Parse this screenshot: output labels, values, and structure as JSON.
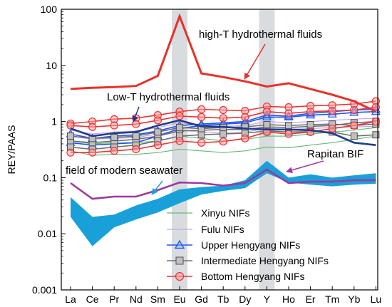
{
  "chart_data": {
    "type": "line",
    "yscale": "log",
    "ylim": [
      0.001,
      100
    ],
    "ylabel": "REY/PAAS",
    "xlabel": "",
    "categories": [
      "La",
      "Ce",
      "Pr",
      "Nd",
      "Sm",
      "Eu",
      "Gd",
      "Tb",
      "Dy",
      "Y",
      "Ho",
      "Er",
      "Tm",
      "Yb",
      "Lu"
    ],
    "yticks": [
      "0.001",
      "0.01",
      "0.1",
      "1",
      "10",
      "100"
    ],
    "highlight_categories": [
      "Eu",
      "Y"
    ],
    "colors": {
      "highT": "#e8312a",
      "lowT": "#1f3d8c",
      "seawater": "#1aa0d8",
      "rapitan": "#9b3aa0",
      "xinyu": "#66bb77",
      "fulu": "#c9a2e6",
      "upper": "#2255ee",
      "intermediate": "#707070",
      "bottom": "#ee3333",
      "highlight": "#d9dcdf"
    },
    "highT_fluids": [
      3.8,
      4.0,
      4.1,
      4.3,
      6.5,
      75,
      7.2,
      6.2,
      5.2,
      4.2,
      4.8,
      3.8,
      3.0,
      2.3,
      1.5
    ],
    "lowT_fluids": [
      0.75,
      0.55,
      0.62,
      0.65,
      0.85,
      1.05,
      0.82,
      0.8,
      0.75,
      0.72,
      0.72,
      0.7,
      0.62,
      0.42,
      0.38
    ],
    "modern_seawater_upper": [
      0.045,
      0.02,
      0.022,
      0.032,
      0.042,
      0.062,
      0.068,
      0.072,
      0.09,
      0.2,
      0.1,
      0.115,
      0.1,
      0.11,
      0.12
    ],
    "modern_seawater_lower": [
      0.02,
      0.006,
      0.013,
      0.018,
      0.024,
      0.035,
      0.05,
      0.058,
      0.065,
      0.12,
      0.082,
      0.075,
      0.07,
      0.075,
      0.078
    ],
    "rapitan_bif": [
      0.08,
      0.042,
      0.046,
      0.046,
      0.06,
      0.082,
      0.08,
      0.072,
      0.08,
      0.14,
      0.08,
      0.085,
      0.085,
      0.09,
      0.09
    ],
    "series": [
      {
        "name": "Xinyu NIFs",
        "marker": "none",
        "lines": [
          [
            0.3,
            0.25,
            0.26,
            0.26,
            0.28,
            0.32,
            0.3,
            0.28,
            0.3,
            0.35,
            0.34,
            0.38,
            0.42,
            0.48,
            0.55
          ],
          [
            0.45,
            0.4,
            0.42,
            0.42,
            0.45,
            0.55,
            0.5,
            0.45,
            0.48,
            0.55,
            0.55,
            0.6,
            0.65,
            0.7,
            0.78
          ]
        ]
      },
      {
        "name": "Fulu NIFs",
        "marker": "none",
        "lines": [
          [
            0.55,
            0.48,
            0.5,
            0.52,
            0.6,
            0.7,
            0.65,
            0.62,
            0.65,
            0.75,
            0.72,
            0.75,
            0.78,
            0.8,
            0.82
          ],
          [
            0.7,
            0.6,
            0.65,
            0.68,
            0.78,
            0.95,
            0.85,
            0.82,
            0.85,
            1.0,
            0.95,
            1.0,
            1.05,
            1.1,
            1.15
          ]
        ]
      },
      {
        "name": "Upper Hengyang NIFs",
        "marker": "triangle",
        "lines": [
          [
            0.42,
            0.38,
            0.4,
            0.42,
            0.55,
            0.75,
            0.85,
            0.9,
            0.95,
            1.2,
            1.2,
            1.3,
            1.35,
            1.45,
            1.5
          ],
          [
            0.6,
            0.5,
            0.55,
            0.58,
            0.68,
            0.85,
            0.9,
            0.95,
            1.0,
            1.3,
            1.25,
            1.4,
            1.5,
            1.6,
            1.65
          ]
        ]
      },
      {
        "name": "Intermediate Hengyang NIFs",
        "marker": "square",
        "lines": [
          [
            0.45,
            0.42,
            0.45,
            0.48,
            0.55,
            0.68,
            0.7,
            0.72,
            0.72,
            0.8,
            0.78,
            0.82,
            0.85,
            0.95,
            1.0
          ],
          [
            0.35,
            0.32,
            0.35,
            0.38,
            0.45,
            0.55,
            0.58,
            0.6,
            0.62,
            0.68,
            0.65,
            0.66,
            0.65,
            0.55,
            0.58
          ],
          [
            0.55,
            0.5,
            0.52,
            0.55,
            0.65,
            0.78,
            0.75,
            0.78,
            0.8,
            0.88,
            0.85,
            0.88,
            0.9,
            0.85,
            0.9
          ]
        ]
      },
      {
        "name": "Bottom Hengyang NIFs",
        "marker": "circle",
        "lines": [
          [
            0.92,
            1.0,
            1.1,
            1.15,
            1.3,
            1.5,
            1.65,
            1.6,
            1.55,
            1.85,
            1.8,
            1.9,
            1.95,
            2.05,
            2.3
          ],
          [
            0.28,
            0.28,
            0.3,
            0.32,
            0.38,
            0.45,
            0.42,
            0.44,
            0.5,
            0.65,
            0.6,
            0.65,
            0.75,
            0.85,
            1.0
          ],
          [
            0.85,
            0.8,
            0.85,
            0.9,
            1.05,
            1.25,
            1.2,
            1.15,
            1.2,
            1.5,
            1.4,
            1.5,
            1.55,
            1.6,
            1.8
          ]
        ]
      }
    ],
    "annotations": {
      "highT": "high-T  hydrothermal fluids",
      "lowT": "Low-T  hydrothermal fluids",
      "seawater": "field of modern seawater",
      "rapitan": "Rapitan BIF"
    },
    "legend_position": "bottom-center"
  }
}
